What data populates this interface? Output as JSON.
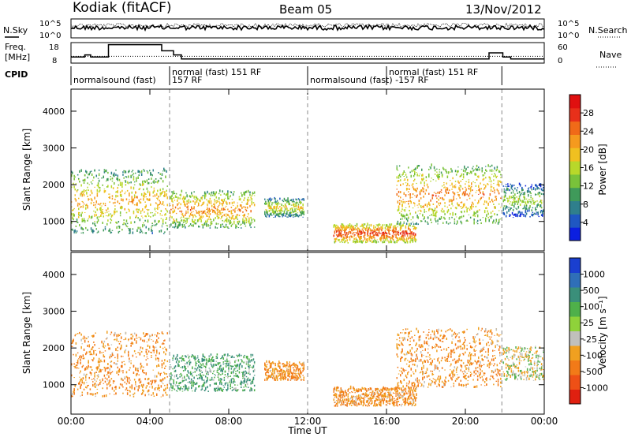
{
  "header": {
    "station": "Kodiak (fitACF)",
    "beam": "Beam 05",
    "date": "13/Nov/2012"
  },
  "top_panels": {
    "nsky_label": "N.Sky",
    "nsearch_label": "N.Search",
    "freq_label_1": "Freq.",
    "freq_label_2": "[MHz]",
    "nave_label": "Nave",
    "cpid_label": "CPID",
    "nsky_ticks": [
      "10^5",
      "10^0"
    ],
    "nsearch_ticks": [
      "10^5",
      "10^0"
    ],
    "freq_ticks": [
      "18",
      "8"
    ],
    "nave_ticks": [
      "60",
      "0"
    ]
  },
  "cpid_segments": [
    {
      "start": 0.0,
      "end": 5.0,
      "label": "normalsound (fast)",
      "row": 1
    },
    {
      "start": 5.0,
      "end": 12.0,
      "label": "normal (fast) 151 RF",
      "row": 0
    },
    {
      "start": 5.0,
      "end": 12.0,
      "label": "157 RF",
      "row": 1
    },
    {
      "start": 12.0,
      "end": 21.85,
      "label": "normalsound (fast) -157 RF",
      "row": 1
    },
    {
      "start": 16.0,
      "end": 21.85,
      "label": "normal (fast)  151  RF",
      "row": 0
    }
  ],
  "axes": {
    "x_label": "Time UT",
    "x_ticks": [
      "00:00",
      "04:00",
      "08:00",
      "12:00",
      "16:00",
      "20:00",
      "00:00"
    ],
    "x_range": [
      0,
      24
    ],
    "y_label": "Slant Range [km]",
    "y_ticks": [
      "1000",
      "2000",
      "3000",
      "4000"
    ],
    "y_range": [
      200,
      4600
    ],
    "dashed_times": [
      5.0,
      12.0,
      21.85
    ]
  },
  "power_colorbar": {
    "label": "Power [dB]",
    "ticks": [
      "4",
      "8",
      "12",
      "16",
      "20",
      "24",
      "28"
    ],
    "colors": [
      "#0b1fe0",
      "#1f57c2",
      "#2f7f8c",
      "#3f9a5a",
      "#79c23a",
      "#b8d82a",
      "#f0c020",
      "#f59a1e",
      "#f06a18",
      "#e8301a",
      "#e01010"
    ]
  },
  "velocity_colorbar": {
    "label": "Velocity [m s⁻¹]",
    "ticks": [
      "1000",
      "500",
      "100",
      "25",
      "-25",
      "-100",
      "-500",
      "-1000"
    ],
    "colors": [
      "#1a3fd0",
      "#2f6fb8",
      "#3a8f7a",
      "#4fb04a",
      "#8fd23a",
      "#c0c0bc",
      "#f0a020",
      "#f27a18",
      "#ee5016",
      "#e02010"
    ]
  },
  "chart_data": [
    {
      "type": "heatmap",
      "title": "Power",
      "xlabel": "Time UT",
      "ylabel": "Slant Range [km]",
      "x_unit": "hours UT",
      "xlim": [
        0,
        24
      ],
      "ylim": [
        200,
        4600
      ],
      "colorbar_label": "Power [dB]",
      "clim": [
        0,
        32
      ],
      "echo_regions": [
        {
          "t_start": 0.0,
          "t_end": 4.9,
          "range_low": 650,
          "range_high": 2400,
          "power_db": 22
        },
        {
          "t_start": 5.0,
          "t_end": 9.3,
          "range_low": 800,
          "range_high": 1800,
          "power_db": 24
        },
        {
          "t_start": 9.8,
          "t_end": 11.8,
          "range_low": 1100,
          "range_high": 1600,
          "power_db": 20
        },
        {
          "t_start": 13.3,
          "t_end": 17.5,
          "range_low": 400,
          "range_high": 900,
          "power_db": 28
        },
        {
          "t_start": 16.5,
          "t_end": 21.8,
          "range_low": 900,
          "range_high": 2500,
          "power_db": 24
        },
        {
          "t_start": 21.9,
          "t_end": 24.0,
          "range_low": 1100,
          "range_high": 2000,
          "power_db": 16
        }
      ]
    },
    {
      "type": "heatmap",
      "title": "Velocity",
      "xlabel": "Time UT",
      "ylabel": "Slant Range [km]",
      "x_unit": "hours UT",
      "xlim": [
        0,
        24
      ],
      "ylim": [
        200,
        4600
      ],
      "colorbar_label": "Velocity [m s-1]",
      "clim": [
        -1000,
        1000
      ],
      "echo_regions": [
        {
          "t_start": 0.0,
          "t_end": 4.9,
          "range_low": 650,
          "range_high": 2400,
          "velocity": -100
        },
        {
          "t_start": 5.0,
          "t_end": 9.3,
          "range_low": 800,
          "range_high": 1800,
          "velocity": 100
        },
        {
          "t_start": 9.8,
          "t_end": 11.8,
          "range_low": 1100,
          "range_high": 1600,
          "velocity": -100
        },
        {
          "t_start": 13.3,
          "t_end": 17.5,
          "range_low": 400,
          "range_high": 900,
          "velocity": -100
        },
        {
          "t_start": 16.5,
          "t_end": 21.8,
          "range_low": 900,
          "range_high": 2500,
          "velocity": -100
        },
        {
          "t_start": 21.9,
          "t_end": 24.0,
          "range_low": 1100,
          "range_high": 2000,
          "velocity": 0
        }
      ]
    },
    {
      "type": "line",
      "title": "Freq.",
      "ylabel": "Freq. [MHz]",
      "ylim": [
        8,
        18
      ],
      "x": [
        0.0,
        0.7,
        1.0,
        1.5,
        1.9,
        4.6,
        5.2,
        5.6,
        21.2,
        21.9,
        22.3,
        24.0
      ],
      "values": [
        11,
        12,
        11,
        11,
        17,
        14,
        12,
        10,
        13,
        11,
        10,
        10
      ]
    },
    {
      "type": "line",
      "title": "Nave",
      "ylabel": "Nave",
      "ylim": [
        0,
        60
      ],
      "x": [
        0,
        24
      ],
      "values": [
        20,
        20
      ]
    }
  ]
}
